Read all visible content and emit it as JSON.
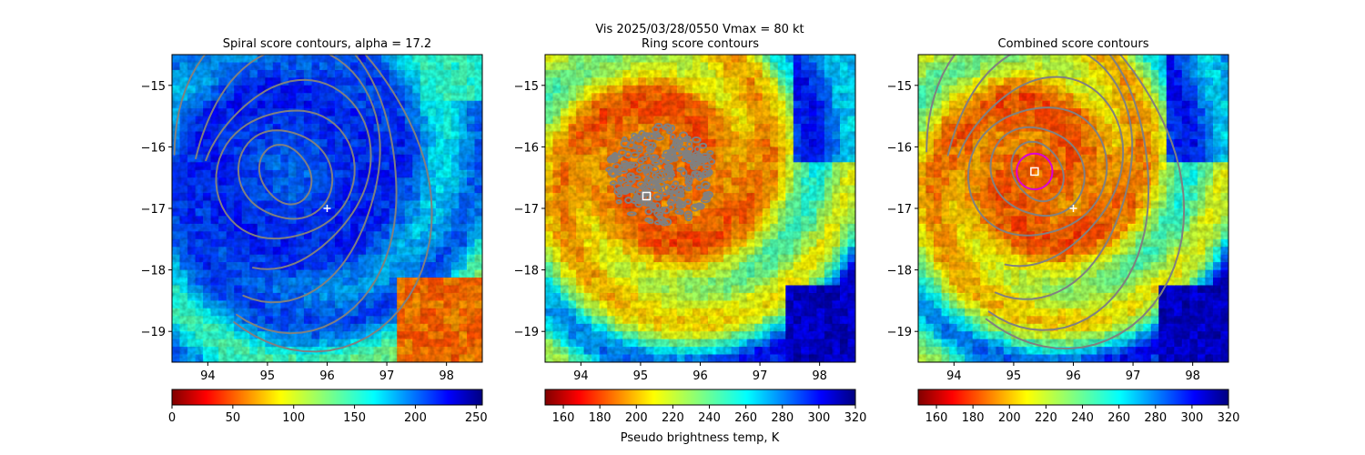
{
  "suptitle_line1": "Vis  2025/03/28/0550    Vmax = 80 kt",
  "colorbar_label": "Pseudo brightness temp, K",
  "chart_data": [
    {
      "type": "heatmap",
      "title": "Spiral score contours, alpha = 17.2",
      "colormap": "jet_r",
      "xlim": [
        93.4,
        98.6
      ],
      "ylim": [
        -19.5,
        -14.5
      ],
      "xticks": [
        94,
        95,
        96,
        97,
        98
      ],
      "yticks": [
        -15,
        -16,
        -17,
        -18,
        -19
      ],
      "xtick_labels": [
        "94",
        "95",
        "96",
        "97",
        "98"
      ],
      "ytick_labels": [
        "−15",
        "−16",
        "−17",
        "−18",
        "−19"
      ],
      "colorbar": {
        "range": [
          0,
          255
        ],
        "ticks": [
          0,
          50,
          100,
          150,
          200,
          250
        ],
        "tick_labels": [
          "0",
          "50",
          "100",
          "150",
          "200",
          "250"
        ]
      },
      "storm_center": {
        "x": 95.4,
        "y": -16.4
      },
      "first_guess_marker": {
        "x": 96.0,
        "y": -17.0,
        "symbol": "+"
      },
      "contour_color": "#808080"
    },
    {
      "type": "heatmap",
      "title": "Ring score contours",
      "colormap": "jet_r",
      "xlim": [
        93.4,
        98.6
      ],
      "ylim": [
        -19.5,
        -14.5
      ],
      "xticks": [
        94,
        95,
        96,
        97,
        98
      ],
      "yticks": [
        -15,
        -16,
        -17,
        -18,
        -19
      ],
      "xtick_labels": [
        "94",
        "95",
        "96",
        "97",
        "98"
      ],
      "ytick_labels": [
        "−15",
        "−16",
        "−17",
        "−18",
        "−19"
      ],
      "colorbar": {
        "range": [
          150,
          320
        ],
        "ticks": [
          160,
          180,
          200,
          220,
          240,
          260,
          280,
          300,
          320
        ],
        "tick_labels": [
          "160",
          "180",
          "200",
          "220",
          "240",
          "260",
          "280",
          "300",
          "320"
        ]
      },
      "storm_center": {
        "x": 95.4,
        "y": -16.4
      },
      "ring_center_marker": {
        "x": 95.1,
        "y": -16.8,
        "symbol": "square"
      },
      "contour_color": "#808080"
    },
    {
      "type": "heatmap",
      "title": "Combined score contours",
      "colormap": "jet_r",
      "xlim": [
        93.4,
        98.6
      ],
      "ylim": [
        -19.5,
        -14.5
      ],
      "xticks": [
        94,
        95,
        96,
        97,
        98
      ],
      "yticks": [
        -15,
        -16,
        -17,
        -18,
        -19
      ],
      "xtick_labels": [
        "94",
        "95",
        "96",
        "97",
        "98"
      ],
      "ytick_labels": [
        "−15",
        "−16",
        "−17",
        "−18",
        "−19"
      ],
      "colorbar": {
        "range": [
          150,
          320
        ],
        "ticks": [
          160,
          180,
          200,
          220,
          240,
          260,
          280,
          300,
          320
        ],
        "tick_labels": [
          "160",
          "180",
          "200",
          "220",
          "240",
          "260",
          "280",
          "300",
          "320"
        ]
      },
      "storm_center": {
        "x": 95.4,
        "y": -16.4
      },
      "best_center_marker": {
        "x": 95.35,
        "y": -16.4,
        "symbol": "square"
      },
      "first_guess_marker": {
        "x": 96.0,
        "y": -17.0,
        "symbol": "+"
      },
      "eye_circle": {
        "x": 95.35,
        "y": -16.4,
        "radius_deg": 0.3,
        "color": "#d800d8"
      },
      "contour_color": "#808080"
    }
  ]
}
